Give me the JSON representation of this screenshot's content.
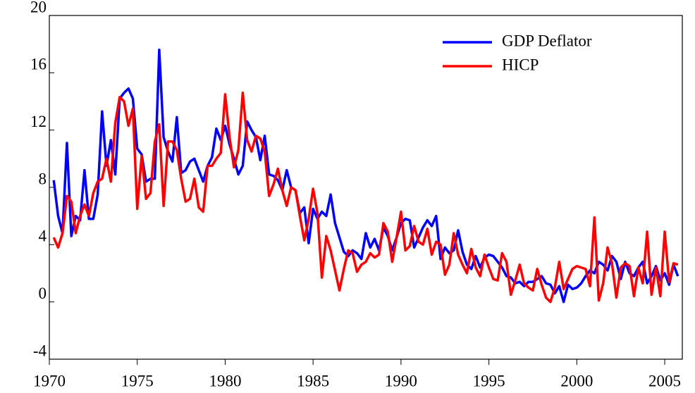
{
  "chart_data": {
    "type": "line",
    "x": [
      1970.25,
      1970.5,
      1970.75,
      1971,
      1971.25,
      1971.5,
      1971.75,
      1972,
      1972.25,
      1972.5,
      1972.75,
      1973,
      1973.25,
      1973.5,
      1973.75,
      1974,
      1974.25,
      1974.5,
      1974.75,
      1975,
      1975.25,
      1975.5,
      1975.75,
      1976,
      1976.25,
      1976.5,
      1976.75,
      1977,
      1977.25,
      1977.5,
      1977.75,
      1978,
      1978.25,
      1978.5,
      1978.75,
      1979,
      1979.25,
      1979.5,
      1979.75,
      1980,
      1980.25,
      1980.5,
      1980.75,
      1981,
      1981.25,
      1981.5,
      1981.75,
      1982,
      1982.25,
      1982.5,
      1982.75,
      1983,
      1983.25,
      1983.5,
      1983.75,
      1984,
      1984.25,
      1984.5,
      1984.75,
      1985,
      1985.25,
      1985.5,
      1985.75,
      1986,
      1986.25,
      1986.5,
      1986.75,
      1987,
      1987.25,
      1987.5,
      1987.75,
      1988,
      1988.25,
      1988.5,
      1988.75,
      1989,
      1989.25,
      1989.5,
      1989.75,
      1990,
      1990.25,
      1990.5,
      1990.75,
      1991,
      1991.25,
      1991.5,
      1991.75,
      1992,
      1992.25,
      1992.5,
      1992.75,
      1993,
      1993.25,
      1993.5,
      1993.75,
      1994,
      1994.25,
      1994.5,
      1994.75,
      1995,
      1995.25,
      1995.5,
      1995.75,
      1996,
      1996.25,
      1996.5,
      1996.75,
      1997,
      1997.25,
      1997.5,
      1997.75,
      1998,
      1998.25,
      1998.5,
      1998.75,
      1999,
      1999.25,
      1999.5,
      1999.75,
      2000,
      2000.25,
      2000.5,
      2000.75,
      2001,
      2001.25,
      2001.5,
      2001.75,
      2002,
      2002.25,
      2002.5,
      2002.75,
      2003,
      2003.25,
      2003.5,
      2003.75,
      2004,
      2004.25,
      2004.5,
      2004.75,
      2005,
      2005.25,
      2005.5,
      2005.75
    ],
    "series": [
      {
        "name": "GDP Deflator",
        "color": "#0000ff",
        "values": [
          8.5,
          6.0,
          4.8,
          11.1,
          4.6,
          6.0,
          5.7,
          9.2,
          5.8,
          5.8,
          7.5,
          13.3,
          9.5,
          11.3,
          8.9,
          14.2,
          14.6,
          14.9,
          14.2,
          10.7,
          10.3,
          8.4,
          8.6,
          8.6,
          17.6,
          11.5,
          10.5,
          9.8,
          12.9,
          9.0,
          9.2,
          9.8,
          10.0,
          9.2,
          8.4,
          9.5,
          10.1,
          12.1,
          11.3,
          12.3,
          11.0,
          10.0,
          8.9,
          9.5,
          12.6,
          12.0,
          11.5,
          9.9,
          11.6,
          8.9,
          8.8,
          8.5,
          7.8,
          9.2,
          8.0,
          7.8,
          6.2,
          6.6,
          4.1,
          6.5,
          5.8,
          6.3,
          6.0,
          7.5,
          5.5,
          4.5,
          3.5,
          3.2,
          3.6,
          3.4,
          3.0,
          4.8,
          3.8,
          4.4,
          3.6,
          5.2,
          4.6,
          3.6,
          4.5,
          5.5,
          5.8,
          5.7,
          3.8,
          4.5,
          5.2,
          5.7,
          5.3,
          6.0,
          3.0,
          3.8,
          3.4,
          3.6,
          5.0,
          3.5,
          2.6,
          2.3,
          3.2,
          2.4,
          3.1,
          3.3,
          3.2,
          2.8,
          2.4,
          1.8,
          1.7,
          1.3,
          1.4,
          1.1,
          1.4,
          1.4,
          1.6,
          1.8,
          1.3,
          1.2,
          0.6,
          1.1,
          0.0,
          1.2,
          0.9,
          1.0,
          1.3,
          1.8,
          2.2,
          2.0,
          2.8,
          2.6,
          2.2,
          3.2,
          2.8,
          1.6,
          2.8,
          2.0,
          1.8,
          2.4,
          2.8,
          1.3,
          1.8,
          2.5,
          1.5,
          2.0,
          1.2,
          2.6,
          1.8
        ]
      },
      {
        "name": "HICP",
        "color": "#ff0000",
        "values": [
          4.5,
          3.8,
          4.8,
          7.4,
          7.0,
          4.8,
          6.0,
          6.8,
          6.0,
          7.6,
          8.4,
          8.6,
          10.0,
          8.4,
          12.5,
          14.3,
          14.0,
          12.3,
          13.5,
          6.5,
          10.2,
          7.2,
          7.6,
          11.2,
          12.4,
          6.7,
          11.2,
          11.2,
          10.6,
          8.6,
          7.0,
          7.2,
          8.6,
          6.6,
          6.3,
          9.5,
          9.5,
          10.0,
          10.4,
          14.5,
          11.5,
          9.4,
          10.6,
          14.6,
          11.3,
          10.5,
          11.6,
          11.4,
          10.5,
          7.4,
          8.2,
          9.3,
          7.8,
          6.7,
          8.0,
          7.8,
          6.0,
          4.3,
          5.8,
          7.9,
          6.2,
          1.7,
          4.6,
          3.6,
          2.2,
          0.8,
          2.3,
          3.6,
          3.4,
          2.1,
          2.6,
          2.8,
          3.4,
          3.1,
          3.3,
          5.5,
          4.9,
          2.8,
          4.5,
          6.3,
          3.6,
          3.9,
          5.3,
          4.2,
          4.0,
          5.1,
          3.3,
          4.2,
          4.0,
          1.9,
          2.6,
          4.8,
          3.3,
          2.6,
          2.0,
          3.7,
          2.4,
          1.8,
          3.3,
          2.4,
          1.6,
          1.5,
          3.4,
          2.8,
          0.5,
          1.5,
          2.6,
          1.3,
          1.0,
          0.8,
          2.3,
          1.2,
          0.3,
          0.0,
          1.0,
          2.8,
          0.9,
          1.6,
          2.3,
          2.5,
          2.4,
          2.3,
          1.1,
          5.9,
          0.1,
          1.3,
          3.8,
          2.7,
          0.3,
          2.4,
          2.7,
          2.5,
          0.4,
          2.4,
          1.3,
          4.9,
          0.5,
          2.4,
          0.4,
          4.9,
          1.4,
          2.7,
          2.6
        ]
      }
    ],
    "xlim": [
      1970,
      2006
    ],
    "xticks": [
      1970,
      1975,
      1980,
      1985,
      1990,
      1995,
      2000,
      2005
    ],
    "ylim": [
      -4,
      20
    ],
    "yticks": [
      -4,
      0,
      4,
      8,
      12,
      16,
      20
    ],
    "legend": "upper-right",
    "grid": false
  }
}
